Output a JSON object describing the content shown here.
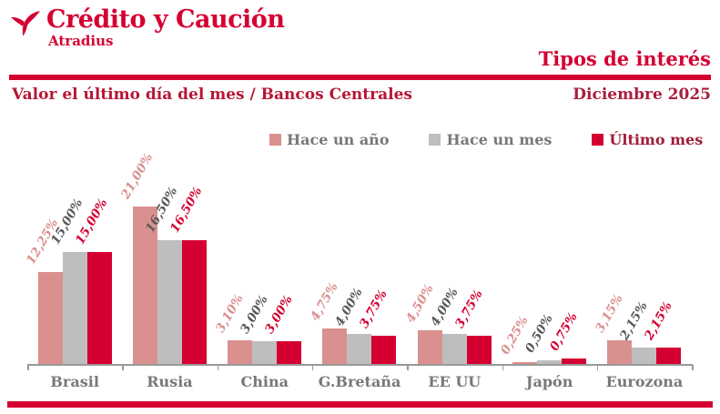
{
  "brand": {
    "name": "Crédito y Caución",
    "subname": "Atradius",
    "logo_icon": "tri-blade-arrow-icon",
    "color": "#D50032"
  },
  "header": {
    "title": "Tipos de interés",
    "subtitle_left": "Valor el último día del mes / Bancos Centrales",
    "date": "Diciembre 2025"
  },
  "colors": {
    "accent_red": "#D50032",
    "dark_red": "#A81E3E",
    "subtitle_red": "#B51735",
    "salmon": "#D9908F",
    "bar_gray": "#BFBEBE",
    "dark_gray_text": "#58585B",
    "gray_text": "#77787B",
    "axis_gray": "#999999"
  },
  "chart_data": {
    "type": "bar",
    "title": "Tipos de interés",
    "xlabel": "",
    "ylabel": "",
    "y_axis_visible": false,
    "grid": false,
    "legend_position": "top-center",
    "value_label_format": "comma-decimal percent, rotated -60deg",
    "ylim": [
      0,
      22
    ],
    "categories": [
      "Brasil",
      "Rusia",
      "China",
      "G.Bretaña",
      "EE UU",
      "Japón",
      "Eurozona"
    ],
    "series": [
      {
        "name": "Hace un año",
        "color": "#D9908F",
        "label_color": "#D9908F",
        "legend_text_color": "#77787B",
        "values": [
          12.25,
          21.0,
          3.1,
          4.75,
          4.5,
          0.25,
          3.15
        ],
        "value_labels": [
          "12,25%",
          "21,00%",
          "3,10%",
          "4,75%",
          "4,50%",
          "0,25%",
          "3,15%"
        ]
      },
      {
        "name": "Hace un mes",
        "color": "#BFBEBE",
        "label_color": "#58585B",
        "legend_text_color": "#77787B",
        "values": [
          15.0,
          16.5,
          3.0,
          4.0,
          4.0,
          0.5,
          2.15
        ],
        "value_labels": [
          "15,00%",
          "16,50%",
          "3,00%",
          "4,00%",
          "4,00%",
          "0,50%",
          "2,15%"
        ]
      },
      {
        "name": "Último mes",
        "color": "#D50032",
        "label_color": "#D50032",
        "legend_text_color": "#A01D38",
        "values": [
          15.0,
          16.5,
          3.0,
          3.75,
          3.75,
          0.75,
          2.15
        ],
        "value_labels": [
          "15,00%",
          "16,50%",
          "3,00%",
          "3,75%",
          "3,75%",
          "0,75%",
          "2,15%"
        ]
      }
    ]
  }
}
